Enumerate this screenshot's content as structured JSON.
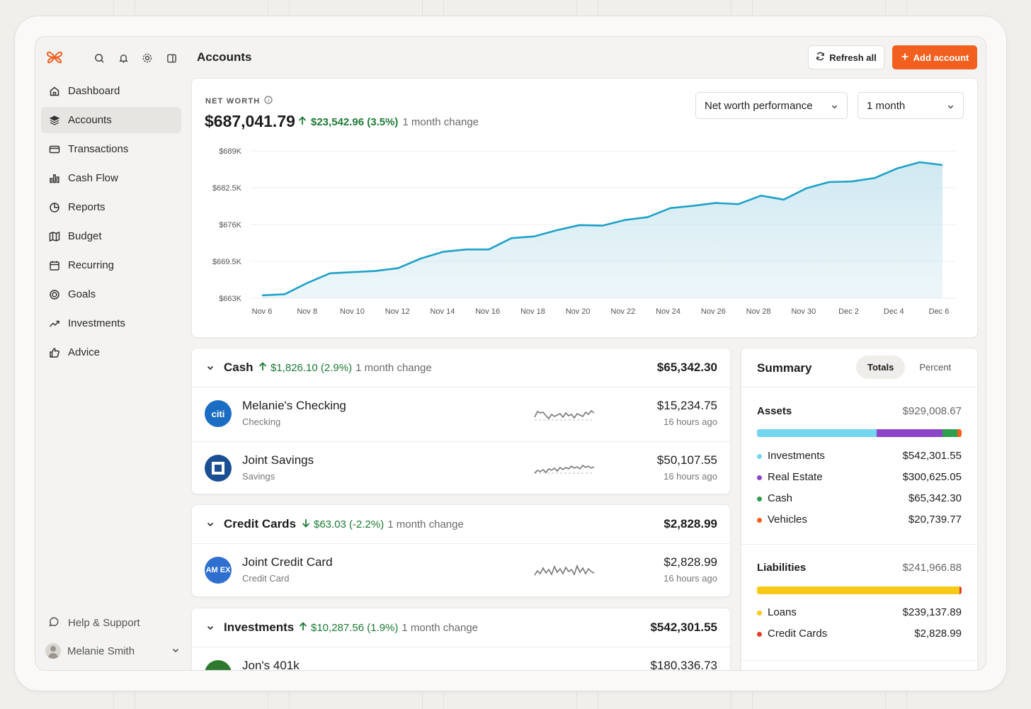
{
  "colors": {
    "accent": "#f2601f",
    "positive": "#1d7a35",
    "chart_line": "#1ea1c8",
    "chart_fill": "#cde8f0"
  },
  "sidebar": {
    "nav": [
      {
        "label": "Dashboard",
        "icon": "home-icon"
      },
      {
        "label": "Accounts",
        "icon": "layers-icon",
        "active": true
      },
      {
        "label": "Transactions",
        "icon": "credit-card-icon"
      },
      {
        "label": "Cash Flow",
        "icon": "bar-chart-icon"
      },
      {
        "label": "Reports",
        "icon": "pie-chart-icon"
      },
      {
        "label": "Budget",
        "icon": "map-icon"
      },
      {
        "label": "Recurring",
        "icon": "calendar-icon"
      },
      {
        "label": "Goals",
        "icon": "target-icon"
      },
      {
        "label": "Investments",
        "icon": "trending-up-icon"
      },
      {
        "label": "Advice",
        "icon": "thumbs-up-icon"
      }
    ],
    "help_label": "Help & Support",
    "user_name": "Melanie Smith"
  },
  "header": {
    "title": "Accounts",
    "refresh_label": "Refresh all",
    "add_label": "Add account"
  },
  "net_worth": {
    "label": "NET WORTH",
    "value": "$687,041.79",
    "change": "$23,542.96 (3.5%)",
    "change_period": "1 month change",
    "chart_select": "Net worth performance",
    "period_select": "1 month"
  },
  "chart_data": {
    "type": "area",
    "title": "Net worth performance",
    "ylim": [
      663000,
      689000
    ],
    "y_ticks": [
      663000,
      669500,
      676000,
      682500,
      689000
    ],
    "y_tick_labels": [
      "$663K",
      "$669.5K",
      "$676K",
      "$682.5K",
      "$689K"
    ],
    "x_tick_labels": [
      "Nov 6",
      "Nov 8",
      "Nov 10",
      "Nov 12",
      "Nov 14",
      "Nov 16",
      "Nov 18",
      "Nov 20",
      "Nov 22",
      "Nov 24",
      "Nov 26",
      "Nov 28",
      "Nov 30",
      "Dec 2",
      "Dec 4",
      "Dec 6"
    ],
    "series": [
      {
        "name": "Net worth",
        "values": [
          663500,
          663700,
          665700,
          667400,
          667600,
          667800,
          668300,
          670000,
          671200,
          671600,
          671600,
          673600,
          673900,
          675000,
          675900,
          675800,
          676800,
          677300,
          678900,
          679300,
          679800,
          679600,
          681100,
          680400,
          682400,
          683500,
          683600,
          684200,
          685900,
          687000,
          686500
        ]
      }
    ]
  },
  "groups": [
    {
      "title": "Cash",
      "direction": "up",
      "change": "$1,826.10 (2.9%)",
      "change_period": "1 month change",
      "total": "$65,342.30",
      "accounts": [
        {
          "name": "Melanie's Checking",
          "type": "Checking",
          "balance": "$15,234.75",
          "updated": "16 hours ago",
          "logo": "citi-logo-icon",
          "logo_text": "citi"
        },
        {
          "name": "Joint Savings",
          "type": "Savings",
          "balance": "$50,107.55",
          "updated": "16 hours ago",
          "logo": "chase-logo-icon",
          "logo_text": ""
        }
      ]
    },
    {
      "title": "Credit Cards",
      "direction": "down",
      "change": "$63.03 (-2.2%)",
      "change_period": "1 month change",
      "total": "$2,828.99",
      "accounts": [
        {
          "name": "Joint Credit Card",
          "type": "Credit Card",
          "balance": "$2,828.99",
          "updated": "16 hours ago",
          "logo": "amex-logo-icon",
          "logo_text": "AM EX"
        }
      ]
    },
    {
      "title": "Investments",
      "direction": "up",
      "change": "$10,287.56 (1.9%)",
      "change_period": "1 month change",
      "total": "$542,301.55",
      "accounts": [
        {
          "name": "Jon's 401k",
          "type": "",
          "balance": "$180,336.73",
          "updated": "",
          "logo": "vanguard-logo-icon",
          "logo_text": ""
        }
      ]
    }
  ],
  "summary": {
    "title": "Summary",
    "tabs": [
      "Totals",
      "Percent"
    ],
    "assets": {
      "label": "Assets",
      "total": "$929,008.67",
      "items": [
        {
          "label": "Investments",
          "value": "$542,301.55",
          "color": "#72d6f1",
          "share": 0.584
        },
        {
          "label": "Real Estate",
          "value": "$300,625.05",
          "color": "#8b45c6",
          "share": 0.324
        },
        {
          "label": "Cash",
          "value": "$65,342.30",
          "color": "#2f9e4f",
          "share": 0.07
        },
        {
          "label": "Vehicles",
          "value": "$20,739.77",
          "color": "#f2601f",
          "share": 0.022
        }
      ]
    },
    "liabilities": {
      "label": "Liabilities",
      "total": "$241,966.88",
      "items": [
        {
          "label": "Loans",
          "value": "$239,137.89",
          "color": "#f8c916",
          "share": 0.988
        },
        {
          "label": "Credit Cards",
          "value": "$2,828.99",
          "color": "#e0432d",
          "share": 0.012
        }
      ]
    }
  }
}
